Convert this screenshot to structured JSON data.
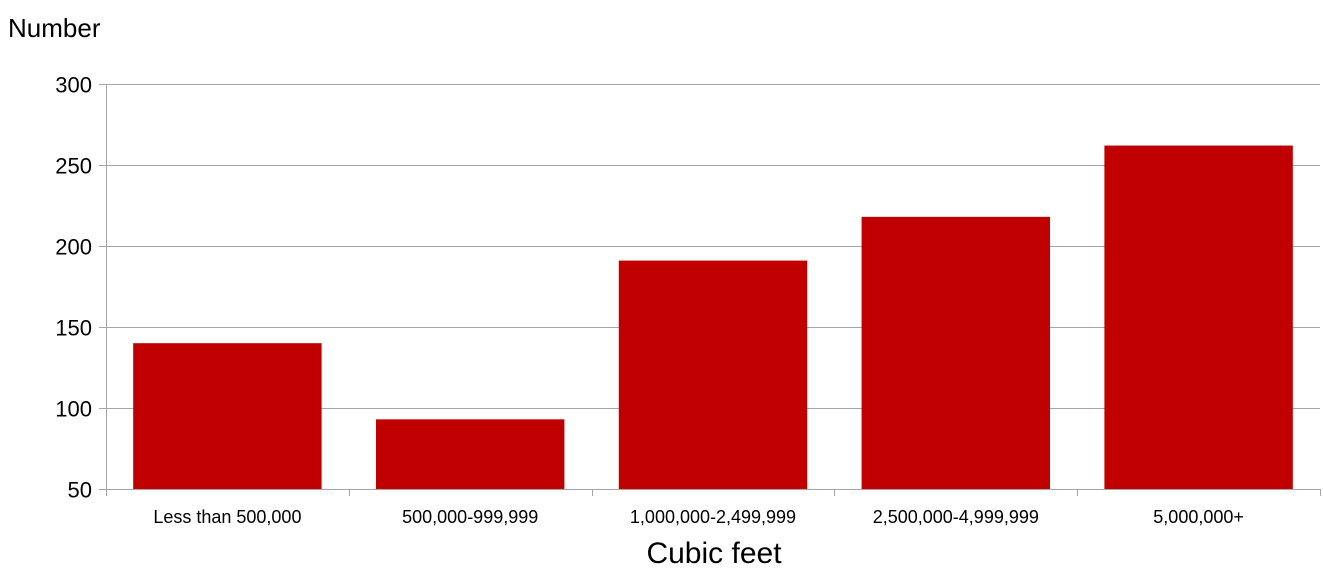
{
  "chart_data": {
    "type": "bar",
    "title": "",
    "ylabel": "Number",
    "xlabel": "Cubic feet",
    "categories": [
      "Less than 500,000",
      "500,000-999,999",
      "1,000,000-2,499,999",
      "2,500,000-4,999,999",
      "5,000,000+"
    ],
    "values": [
      140,
      93,
      191,
      218,
      262
    ],
    "ylim": [
      50,
      300
    ],
    "yticks": [
      50,
      100,
      150,
      200,
      250,
      300
    ],
    "grid": true,
    "bar_color": "#c00000",
    "grid_color": "#a6a6a6",
    "legend": "none"
  }
}
